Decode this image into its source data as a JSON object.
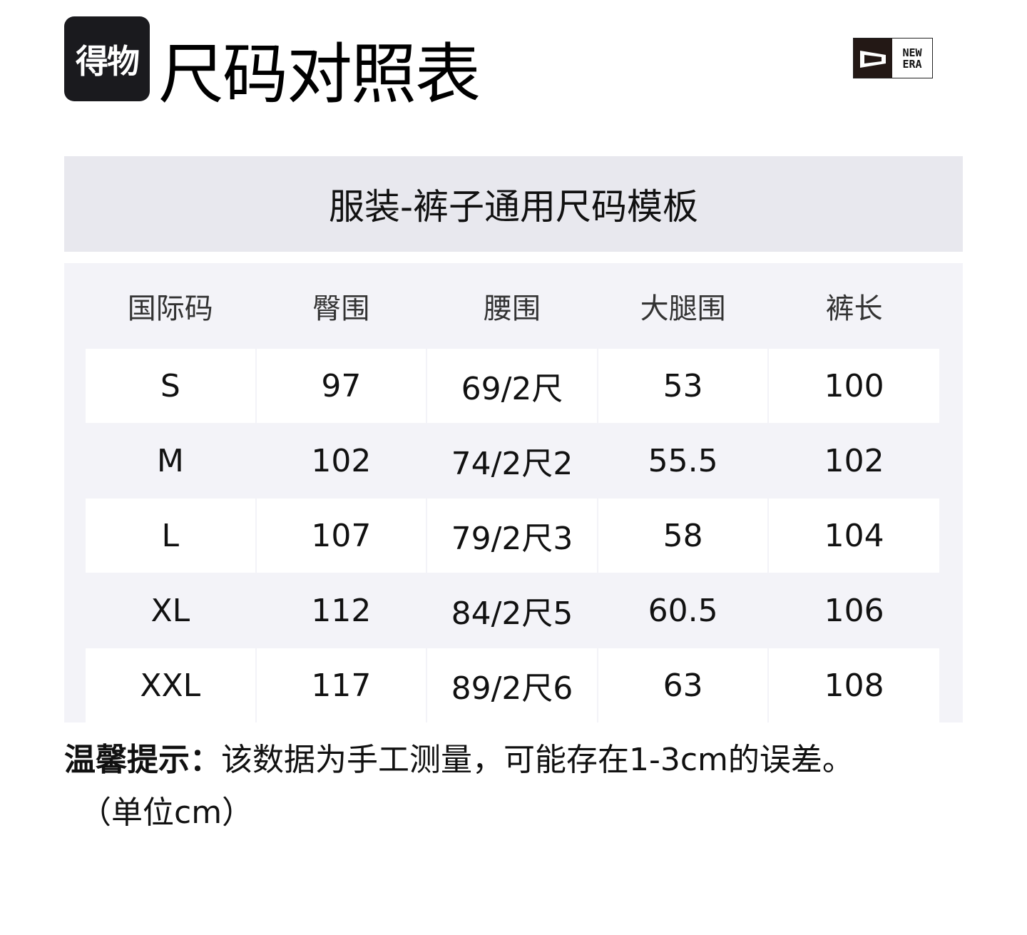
{
  "logo": {
    "text": "得物"
  },
  "title": "尺码对照表",
  "brand_logo": {
    "text_line1": "NEW",
    "text_line2": "ERA"
  },
  "template_title": "服装-裤子通用尺码模板",
  "table": {
    "headers": [
      "国际码",
      "臀围",
      "腰围",
      "大腿围",
      "裤长"
    ],
    "rows": [
      [
        "S",
        "97",
        "69/2尺",
        "53",
        "100"
      ],
      [
        "M",
        "102",
        "74/2尺2",
        "55.5",
        "102"
      ],
      [
        "L",
        "107",
        "79/2尺3",
        "58",
        "104"
      ],
      [
        "XL",
        "112",
        "84/2尺5",
        "60.5",
        "106"
      ],
      [
        "XXL",
        "117",
        "89/2尺6",
        "63",
        "108"
      ]
    ]
  },
  "note": {
    "label": "温馨提示：",
    "text": "该数据为手工测量，可能存在1-3cm的误差。",
    "unit": "（单位cm）"
  },
  "colors": {
    "band": "#e8e8ee",
    "table_bg": "#f3f3f8",
    "logo_bg": "#1a1a1e"
  }
}
